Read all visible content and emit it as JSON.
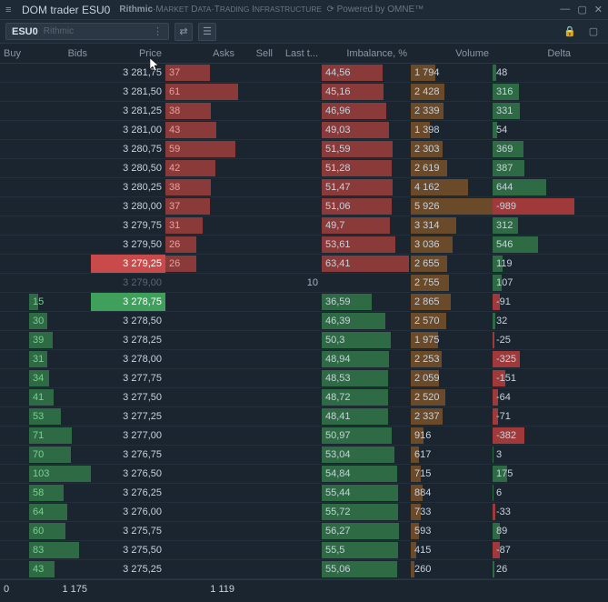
{
  "window": {
    "title": "DOM trader ESU0",
    "brand_html": "Rithmic · Market Data·Trading Infrastructure · Powered by OMNE™"
  },
  "toolbar": {
    "symbol": "ESU0",
    "provider": "Rithmic"
  },
  "columns": [
    "Buy",
    "Bids",
    "Price",
    "Asks",
    "Sell",
    "Last t...",
    "Imbalance, %",
    "Volume",
    "Delta"
  ],
  "colors": {
    "ask_bar": "#8b3a3a",
    "bid_bar": "#2e6b45",
    "imb_ask": "#8b3a3a",
    "imb_bid": "#2e6b45",
    "vol_bar": "#6b4a2a",
    "delta_pos": "#2e6b45",
    "delta_neg": "#a03a3a",
    "bid_txt": "#7ad090",
    "ask_txt": "#e8a0a0",
    "text": "#c8d2dc"
  },
  "max": {
    "bid": 103,
    "ask": 61,
    "imb": 65,
    "vol": 5926,
    "delta": 989
  },
  "footer": {
    "buy": "0",
    "bids": "1 175",
    "asks": "1 119"
  },
  "rows": [
    {
      "price": "3 281,75",
      "ask": 37,
      "imb": 44.56,
      "imb_side": "ask",
      "vol": 1794,
      "delta": 48
    },
    {
      "price": "3 281,50",
      "ask": 61,
      "imb": 45.16,
      "imb_side": "ask",
      "vol": 2428,
      "delta": 316
    },
    {
      "price": "3 281,25",
      "ask": 38,
      "imb": 46.96,
      "imb_side": "ask",
      "vol": 2339,
      "delta": 331
    },
    {
      "price": "3 281,00",
      "ask": 43,
      "imb": 49.03,
      "imb_side": "ask",
      "vol": 1398,
      "delta": 54
    },
    {
      "price": "3 280,75",
      "ask": 59,
      "imb": 51.59,
      "imb_side": "ask",
      "vol": 2303,
      "delta": 369
    },
    {
      "price": "3 280,50",
      "ask": 42,
      "imb": 51.28,
      "imb_side": "ask",
      "vol": 2619,
      "delta": 387
    },
    {
      "price": "3 280,25",
      "ask": 38,
      "imb": 51.47,
      "imb_side": "ask",
      "vol": 4162,
      "delta": 644
    },
    {
      "price": "3 280,00",
      "ask": 37,
      "imb": 51.06,
      "imb_side": "ask",
      "vol": 5926,
      "delta": -989
    },
    {
      "price": "3 279,75",
      "ask": 31,
      "imb": 49.7,
      "imb_side": "ask",
      "vol": 3314,
      "delta": 312
    },
    {
      "price": "3 279,50",
      "ask": 26,
      "imb": 53.61,
      "imb_side": "ask",
      "vol": 3036,
      "delta": 546
    },
    {
      "price": "3 279,25",
      "ask": 26,
      "imb": 63.41,
      "imb_side": "ask",
      "vol": 2655,
      "delta": 119,
      "best_ask": true
    },
    {
      "price": "3 279,00",
      "last": 10,
      "vol": 2755,
      "delta": 107,
      "faded": true
    },
    {
      "price": "3 278,75",
      "bid": 15,
      "imb": 36.59,
      "imb_side": "bid",
      "vol": 2865,
      "delta": -91,
      "best_bid": true
    },
    {
      "price": "3 278,50",
      "bid": 30,
      "imb": 46.39,
      "imb_side": "bid",
      "vol": 2570,
      "delta": 32
    },
    {
      "price": "3 278,25",
      "bid": 39,
      "imb": 50.3,
      "imb_side": "bid",
      "vol": 1975,
      "delta": -25
    },
    {
      "price": "3 278,00",
      "bid": 31,
      "imb": 48.94,
      "imb_side": "bid",
      "vol": 2253,
      "delta": -325
    },
    {
      "price": "3 277,75",
      "bid": 34,
      "imb": 48.53,
      "imb_side": "bid",
      "vol": 2059,
      "delta": -151
    },
    {
      "price": "3 277,50",
      "bid": 41,
      "imb": 48.72,
      "imb_side": "bid",
      "vol": 2520,
      "delta": -64
    },
    {
      "price": "3 277,25",
      "bid": 53,
      "imb": 48.41,
      "imb_side": "bid",
      "vol": 2337,
      "delta": -71
    },
    {
      "price": "3 277,00",
      "bid": 71,
      "imb": 50.97,
      "imb_side": "bid",
      "vol": 916,
      "delta": -382
    },
    {
      "price": "3 276,75",
      "bid": 70,
      "imb": 53.04,
      "imb_side": "bid",
      "vol": 617,
      "delta": 3
    },
    {
      "price": "3 276,50",
      "bid": 103,
      "imb": 54.84,
      "imb_side": "bid",
      "vol": 715,
      "delta": 175
    },
    {
      "price": "3 276,25",
      "bid": 58,
      "imb": 55.44,
      "imb_side": "bid",
      "vol": 884,
      "delta": 6
    },
    {
      "price": "3 276,00",
      "bid": 64,
      "imb": 55.72,
      "imb_side": "bid",
      "vol": 733,
      "delta": -33
    },
    {
      "price": "3 275,75",
      "bid": 60,
      "imb": 56.27,
      "imb_side": "bid",
      "vol": 593,
      "delta": 89
    },
    {
      "price": "3 275,50",
      "bid": 83,
      "imb": 55.5,
      "imb_side": "bid",
      "vol": 415,
      "delta": -87
    },
    {
      "price": "3 275,25",
      "bid": 43,
      "imb": 55.06,
      "imb_side": "bid",
      "vol": 260,
      "delta": 26
    }
  ]
}
